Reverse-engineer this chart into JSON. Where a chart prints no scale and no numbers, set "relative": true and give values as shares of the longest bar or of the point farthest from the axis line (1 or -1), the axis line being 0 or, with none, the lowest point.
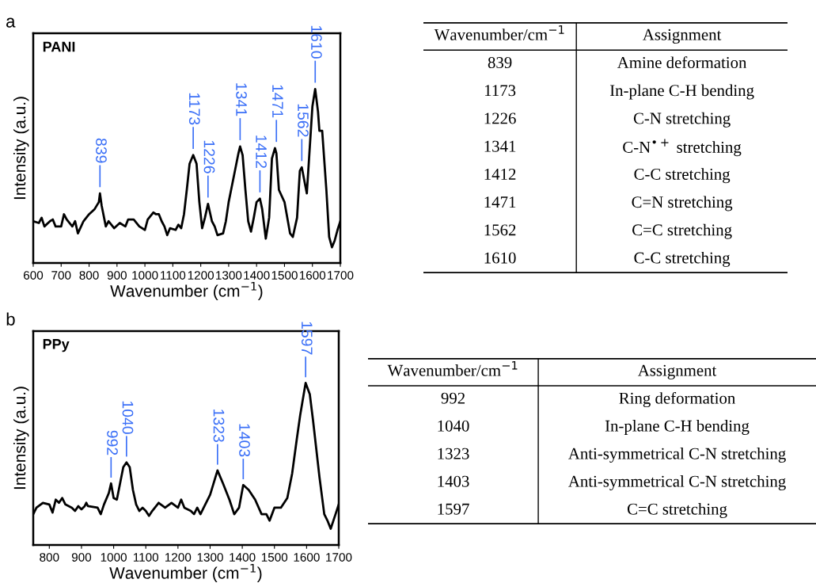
{
  "chart_data": [
    {
      "type": "line",
      "relative": true,
      "xlabel": "Wavenumber (cm$^{−1}$)",
      "ylabel": "Intensity (a.u.)",
      "xlim": [
        600,
        1700
      ],
      "xticks": [
        600,
        700,
        800,
        900,
        1000,
        1100,
        1200,
        1300,
        1400,
        1500,
        1600,
        1700
      ],
      "tick_labels": "x",
      "grid": false,
      "legend": false,
      "series": [
        {
          "name": "PANI",
          "color": "#000000",
          "x": [
            600,
            620,
            630,
            640,
            660,
            670,
            680,
            700,
            710,
            720,
            740,
            750,
            760,
            780,
            800,
            820,
            835,
            839,
            845,
            860,
            870,
            890,
            910,
            930,
            940,
            960,
            980,
            1000,
            1010,
            1030,
            1040,
            1050,
            1060,
            1070,
            1080,
            1090,
            1110,
            1120,
            1130,
            1140,
            1150,
            1160,
            1173,
            1185,
            1195,
            1205,
            1215,
            1226,
            1240,
            1250,
            1260,
            1280,
            1290,
            1300,
            1320,
            1335,
            1341,
            1350,
            1360,
            1370,
            1380,
            1390,
            1400,
            1412,
            1420,
            1433,
            1445,
            1455,
            1466,
            1471,
            1480,
            1500,
            1520,
            1530,
            1545,
            1555,
            1562,
            1575,
            1580,
            1590,
            1600,
            1610,
            1620,
            1625,
            1635,
            1650,
            1660,
            1670,
            1680,
            1690,
            1700
          ],
          "values": [
            0.24,
            0.23,
            0.26,
            0.21,
            0.24,
            0.25,
            0.21,
            0.21,
            0.28,
            0.25,
            0.21,
            0.24,
            0.17,
            0.24,
            0.28,
            0.31,
            0.35,
            0.4,
            0.33,
            0.21,
            0.24,
            0.2,
            0.23,
            0.21,
            0.25,
            0.25,
            0.21,
            0.19,
            0.25,
            0.29,
            0.28,
            0.28,
            0.24,
            0.21,
            0.16,
            0.2,
            0.19,
            0.22,
            0.2,
            0.28,
            0.42,
            0.57,
            0.62,
            0.57,
            0.35,
            0.2,
            0.26,
            0.34,
            0.24,
            0.21,
            0.16,
            0.17,
            0.24,
            0.35,
            0.51,
            0.63,
            0.67,
            0.62,
            0.42,
            0.24,
            0.18,
            0.26,
            0.35,
            0.37,
            0.31,
            0.14,
            0.26,
            0.6,
            0.66,
            0.63,
            0.42,
            0.35,
            0.17,
            0.15,
            0.26,
            0.53,
            0.55,
            0.44,
            0.4,
            0.65,
            0.9,
            1.0,
            0.87,
            0.76,
            0.76,
            0.42,
            0.15,
            0.09,
            0.13,
            0.19,
            0.24
          ]
        }
      ],
      "annotations": [
        "a",
        {
          "text": "839",
          "x": 839,
          "y": 0.4
        },
        {
          "text": "1173",
          "x": 1173,
          "y": 0.62
        },
        {
          "text": "1226",
          "x": 1226,
          "y": 0.34
        },
        {
          "text": "1341",
          "x": 1341,
          "y": 0.67
        },
        {
          "text": "1412",
          "x": 1412,
          "y": 0.37
        },
        {
          "text": "1471",
          "x": 1471,
          "y": 0.66
        },
        {
          "text": "1562",
          "x": 1562,
          "y": 0.55
        },
        {
          "text": "1610",
          "x": 1610,
          "y": 1.0
        }
      ]
    },
    {
      "type": "other",
      "categories": [
        "Wavenumber/cm$^{−1}$",
        "Assignment"
      ],
      "annotations": [
        "839",
        "Amine deformation",
        "1173",
        "In-plane C-H bending",
        "1226",
        "C-N stretching",
        "1341",
        "C-N$^{•+}$ stretching",
        "1412",
        "C-C stretching",
        "1471",
        "C=N stretching",
        "1562",
        "C=C stretching",
        "1610",
        "C-C stretching"
      ]
    },
    {
      "type": "line",
      "relative": true,
      "xlabel": "Wavenumber (cm$^{−1}$)",
      "ylabel": "Intensity (a.u.)",
      "xlim": [
        750,
        1700
      ],
      "xticks": [
        800,
        900,
        1000,
        1100,
        1200,
        1300,
        1400,
        1500,
        1600,
        1700
      ],
      "tick_labels": "x",
      "grid": false,
      "legend": false,
      "series": [
        {
          "name": "PPy",
          "color": "#000000",
          "x": [
            750,
            760,
            780,
            800,
            810,
            820,
            830,
            840,
            850,
            870,
            880,
            890,
            900,
            910,
            915,
            920,
            950,
            960,
            970,
            985,
            992,
            1000,
            1010,
            1030,
            1040,
            1050,
            1060,
            1070,
            1080,
            1090,
            1100,
            1110,
            1120,
            1140,
            1160,
            1180,
            1200,
            1210,
            1220,
            1240,
            1250,
            1260,
            1270,
            1280,
            1300,
            1323,
            1340,
            1360,
            1375,
            1390,
            1403,
            1420,
            1440,
            1460,
            1475,
            1485,
            1500,
            1520,
            1540,
            1555,
            1570,
            1580,
            1597,
            1610,
            1620,
            1640,
            1655,
            1665,
            1675,
            1690,
            1700
          ],
          "values": [
            0.19,
            0.23,
            0.26,
            0.25,
            0.2,
            0.28,
            0.26,
            0.29,
            0.25,
            0.23,
            0.21,
            0.24,
            0.22,
            0.24,
            0.26,
            0.24,
            0.23,
            0.19,
            0.25,
            0.32,
            0.38,
            0.29,
            0.28,
            0.48,
            0.51,
            0.48,
            0.34,
            0.25,
            0.21,
            0.23,
            0.21,
            0.18,
            0.21,
            0.26,
            0.23,
            0.26,
            0.23,
            0.28,
            0.23,
            0.21,
            0.19,
            0.23,
            0.19,
            0.23,
            0.31,
            0.46,
            0.38,
            0.28,
            0.19,
            0.23,
            0.37,
            0.34,
            0.28,
            0.19,
            0.19,
            0.15,
            0.23,
            0.23,
            0.29,
            0.44,
            0.66,
            0.8,
            1.0,
            0.93,
            0.77,
            0.42,
            0.19,
            0.15,
            0.1,
            0.19,
            0.25
          ]
        }
      ],
      "annotations": [
        "b",
        {
          "text": "992",
          "x": 992,
          "y": 0.38
        },
        {
          "text": "1040",
          "x": 1040,
          "y": 0.51
        },
        {
          "text": "1323",
          "x": 1323,
          "y": 0.46
        },
        {
          "text": "1403",
          "x": 1403,
          "y": 0.37
        },
        {
          "text": "1597",
          "x": 1597,
          "y": 1.0
        }
      ]
    },
    {
      "type": "other",
      "categories": [
        "Wavenumber/cm$^{−1}$",
        "Assignment"
      ],
      "annotations": [
        "992",
        "Ring deformation",
        "1040",
        "In-plane C-H bending",
        "1323",
        "Anti-symmetrical C-N stretching",
        "1403",
        "Anti-symmetrical C-N stretching",
        "1597",
        "C=C stretching"
      ]
    }
  ]
}
